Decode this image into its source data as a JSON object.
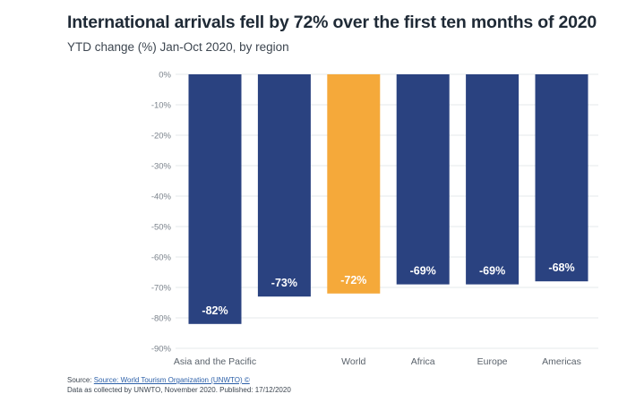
{
  "chart_data": {
    "type": "bar",
    "title": "International arrivals fell by 72% over the first ten months of 2020",
    "subtitle": "YTD change (%) Jan-Oct 2020, by region",
    "categories": [
      "Asia and the Pacific",
      "",
      "World",
      "Africa",
      "Europe",
      "Americas"
    ],
    "values": [
      -82,
      -73,
      -72,
      -69,
      -69,
      -68
    ],
    "data_labels": [
      "-82%",
      "-73%",
      "-72%",
      "-69%",
      "-69%",
      "-68%"
    ],
    "ylim": [
      -90,
      0
    ],
    "yticks": [
      0,
      -10,
      -20,
      -30,
      -40,
      -50,
      -60,
      -70,
      -80,
      -90
    ],
    "ytick_labels": [
      "0%",
      "-10%",
      "-20%",
      "-30%",
      "-40%",
      "-50%",
      "-60%",
      "-70%",
      "-80%",
      "-90%"
    ],
    "highlight_category": "World",
    "colors": {
      "bar": "#2a4280",
      "highlight": "#f5a93a",
      "grid": "#e6e8eb"
    },
    "grid": true
  },
  "footer": {
    "source_prefix": "Source: ",
    "source_link": "Source: World Tourism Organization (UNWTO) ©",
    "note": "Data as collected by UNWTO, November 2020. Published: 17/12/2020"
  }
}
